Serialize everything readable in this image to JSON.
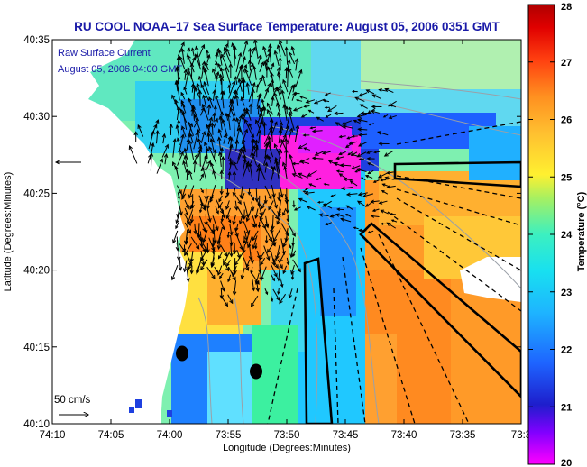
{
  "title": "RU COOL  NOAA–17  Sea Surface Temperature:  August 05, 2006 0351 GMT",
  "legend": {
    "line1": "Raw Surface Current",
    "line2": "August 05, 2006 04:00 GMT"
  },
  "scale_label": "50 cm/s",
  "x_axis": {
    "label": "Longitude (Degrees:Minutes)",
    "ticks": [
      "74:10",
      "74:05",
      "74:00",
      "73:55",
      "73:50",
      "73:45",
      "73:40",
      "73:35",
      "73:3"
    ]
  },
  "y_axis": {
    "label": "Latitude (Degrees:Minutes)",
    "ticks": [
      "40:35",
      "40:30",
      "40:25",
      "40:20",
      "40:15",
      "40:10"
    ]
  },
  "colorbar": {
    "label": "Temperature (°C)",
    "ticks": [
      "28",
      "27",
      "26",
      "25",
      "24",
      "23",
      "22",
      "21",
      "20"
    ],
    "min": 20,
    "max": 28
  },
  "colors": {
    "title": "#1a1aa8",
    "land": "#ffffff",
    "vector": "#000000"
  }
}
